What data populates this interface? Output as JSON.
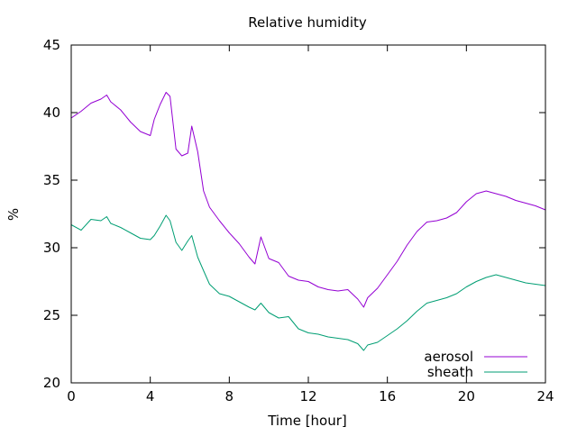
{
  "chart_data": {
    "type": "line",
    "title": "Relative humidity",
    "xlabel": "Time [hour]",
    "ylabel": "%",
    "xlim": [
      0,
      24
    ],
    "ylim": [
      20,
      45
    ],
    "xticks": [
      0,
      4,
      8,
      12,
      16,
      20,
      24
    ],
    "yticks": [
      20,
      25,
      30,
      35,
      40,
      45
    ],
    "grid": false,
    "legend_position": "bottom-right",
    "series": [
      {
        "name": "aerosol",
        "color": "#9400d3",
        "x": [
          0,
          0.5,
          1,
          1.5,
          1.8,
          2,
          2.5,
          3,
          3.5,
          4,
          4.2,
          4.5,
          4.8,
          5,
          5.3,
          5.6,
          5.9,
          6.1,
          6.4,
          6.7,
          7,
          7.5,
          8,
          8.5,
          9,
          9.3,
          9.6,
          10,
          10.5,
          11,
          11.5,
          12,
          12.5,
          13,
          13.5,
          14,
          14.5,
          14.8,
          15,
          15.5,
          16,
          16.5,
          17,
          17.5,
          18,
          18.5,
          19,
          19.5,
          20,
          20.5,
          21,
          21.5,
          22,
          22.5,
          23,
          23.5,
          24
        ],
        "y": [
          39.6,
          40.1,
          40.7,
          41.0,
          41.3,
          40.8,
          40.2,
          39.3,
          38.6,
          38.3,
          39.5,
          40.6,
          41.5,
          41.2,
          37.3,
          36.8,
          37.0,
          39.0,
          37.1,
          34.2,
          33.0,
          32.0,
          31.1,
          30.3,
          29.3,
          28.8,
          30.8,
          29.2,
          28.9,
          27.9,
          27.6,
          27.5,
          27.1,
          26.9,
          26.8,
          26.9,
          26.2,
          25.6,
          26.3,
          27.0,
          28.0,
          29.0,
          30.2,
          31.2,
          31.9,
          32.0,
          32.2,
          32.6,
          33.4,
          34.0,
          34.2,
          34.0,
          33.8,
          33.5,
          33.3,
          33.1,
          32.8
        ]
      },
      {
        "name": "sheath",
        "color": "#009e73",
        "x": [
          0,
          0.5,
          1,
          1.5,
          1.8,
          2,
          2.5,
          3,
          3.5,
          4,
          4.2,
          4.5,
          4.8,
          5,
          5.3,
          5.6,
          5.9,
          6.1,
          6.4,
          6.7,
          7,
          7.5,
          8,
          8.5,
          9,
          9.3,
          9.6,
          10,
          10.5,
          11,
          11.5,
          12,
          12.5,
          13,
          13.5,
          14,
          14.5,
          14.8,
          15,
          15.5,
          16,
          16.5,
          17,
          17.5,
          18,
          18.5,
          19,
          19.5,
          20,
          20.5,
          21,
          21.5,
          22,
          22.5,
          23,
          23.5,
          24
        ],
        "y": [
          31.7,
          31.3,
          32.1,
          32.0,
          32.3,
          31.8,
          31.5,
          31.1,
          30.7,
          30.6,
          30.9,
          31.6,
          32.4,
          32.0,
          30.4,
          29.8,
          30.5,
          30.9,
          29.3,
          28.3,
          27.3,
          26.6,
          26.4,
          26.0,
          25.6,
          25.4,
          25.9,
          25.2,
          24.8,
          24.9,
          24.0,
          23.7,
          23.6,
          23.4,
          23.3,
          23.2,
          22.9,
          22.4,
          22.8,
          23.0,
          23.5,
          24.0,
          24.6,
          25.3,
          25.9,
          26.1,
          26.3,
          26.6,
          27.1,
          27.5,
          27.8,
          28.0,
          27.8,
          27.6,
          27.4,
          27.3,
          27.2
        ]
      }
    ]
  }
}
